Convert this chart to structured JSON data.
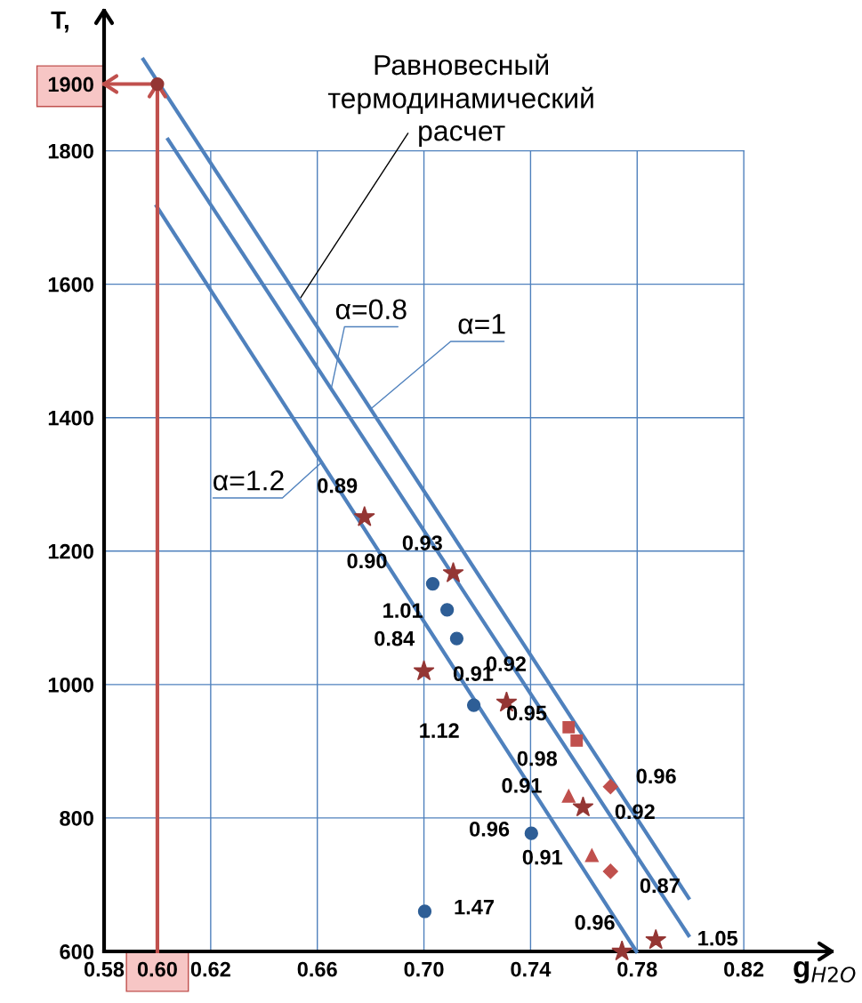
{
  "chart_data": {
    "type": "scatter",
    "xlabel": "g$_{H2O}$",
    "ylabel": "T,",
    "xlim": [
      0.58,
      0.853
    ],
    "ylim": [
      600,
      2010
    ],
    "xticks": [
      0.58,
      {
        "value": 0.6,
        "label": "0.60"
      },
      0.62,
      0.66,
      {
        "value": 0.7,
        "label": "0.70"
      },
      0.74,
      0.78,
      0.82
    ],
    "yticks": [
      600,
      800,
      1000,
      1200,
      1400,
      1600,
      1800,
      {
        "value": 1900,
        "label": "1900"
      }
    ],
    "grid": true,
    "legend": false,
    "series": [
      {
        "type": "line",
        "color": "#4f81bd",
        "marker": "none",
        "x": [
          0.5947,
          0.7993
        ],
        "values": [
          1937,
          680
        ]
      },
      {
        "type": "line",
        "color": "#4f81bd",
        "marker": "none",
        "x": [
          0.604,
          0.7993
        ],
        "values": [
          1817,
          624
        ]
      },
      {
        "type": "line",
        "color": "#4f81bd",
        "marker": "none",
        "x": [
          0.5997,
          0.7797
        ],
        "values": [
          1717,
          600
        ]
      },
      {
        "type": "line",
        "color": "#c0504d",
        "marker": "none",
        "x": [
          0.6,
          0.6,
          0.58
        ],
        "values": [
          600,
          1900,
          1900
        ]
      },
      {
        "color": "#943634",
        "marker": "circle",
        "x": [
          0.6
        ],
        "values": [
          1900
        ]
      },
      {
        "color": "#2e5e96",
        "marker": "circle",
        "x": [
          0.7033,
          0.7087,
          0.7123,
          0.7187,
          0.7403,
          0.7003
        ],
        "values": [
          1151,
          1112,
          1069,
          969,
          777,
          660
        ]
      },
      {
        "color": "#943634",
        "marker": "star",
        "x": [
          0.6777,
          0.711,
          0.7,
          0.731,
          0.7597,
          0.7743,
          0.787
        ],
        "values": [
          1251,
          1167,
          1020,
          973,
          816,
          600,
          617
        ]
      },
      {
        "color": "#c0504d",
        "marker": "square",
        "x": [
          0.7543,
          0.7573
        ],
        "values": [
          936,
          916
        ]
      },
      {
        "color": "#c0504d",
        "marker": "triangle",
        "x": [
          0.7543,
          0.763
        ],
        "values": [
          833,
          744
        ]
      },
      {
        "color": "#c0504d",
        "marker": "diamond",
        "x": [
          0.77,
          0.77
        ],
        "values": [
          847,
          720
        ]
      }
    ],
    "annotations": [
      {
        "text": "Равновесный\nтермодинамический\nрасчет",
        "x": 0.6533,
        "y": 1577
      },
      {
        "text": "α=0.8",
        "x": 0.6652,
        "y": 1443
      },
      {
        "text": "α=1",
        "x": 0.68,
        "y": 1413
      },
      {
        "text": "α=1.2",
        "x": 0.6616,
        "y": 1333
      },
      {
        "text": "0.89",
        "x": 0.6777,
        "y": 1251
      },
      {
        "text": "0.90",
        "x": 0.6777,
        "y": 1251
      },
      {
        "text": "0.93",
        "x": 0.711,
        "y": 1167
      },
      {
        "text": "1.01",
        "x": 0.7087,
        "y": 1112
      },
      {
        "text": "0.84",
        "x": 0.7,
        "y": 1020
      },
      {
        "text": "0.92",
        "x": 0.7123,
        "y": 1069
      },
      {
        "text": "0.91",
        "x": 0.731,
        "y": 973
      },
      {
        "text": "1.12",
        "x": 0.7187,
        "y": 969
      },
      {
        "text": "0.95",
        "x": 0.7543,
        "y": 936
      },
      {
        "text": "0.98",
        "x": 0.7573,
        "y": 916
      },
      {
        "text": "0.96",
        "x": 0.77,
        "y": 847
      },
      {
        "text": "0.91",
        "x": 0.7543,
        "y": 833
      },
      {
        "text": "0.92",
        "x": 0.7597,
        "y": 816
      },
      {
        "text": "0.96",
        "x": 0.7403,
        "y": 777
      },
      {
        "text": "0.91",
        "x": 0.763,
        "y": 744
      },
      {
        "text": "0.87",
        "x": 0.77,
        "y": 720
      },
      {
        "text": "1.47",
        "x": 0.7003,
        "y": 660
      },
      {
        "text": "0.96",
        "x": 0.7743,
        "y": 600
      },
      {
        "text": "1.05",
        "x": 0.787,
        "y": 617
      }
    ]
  }
}
